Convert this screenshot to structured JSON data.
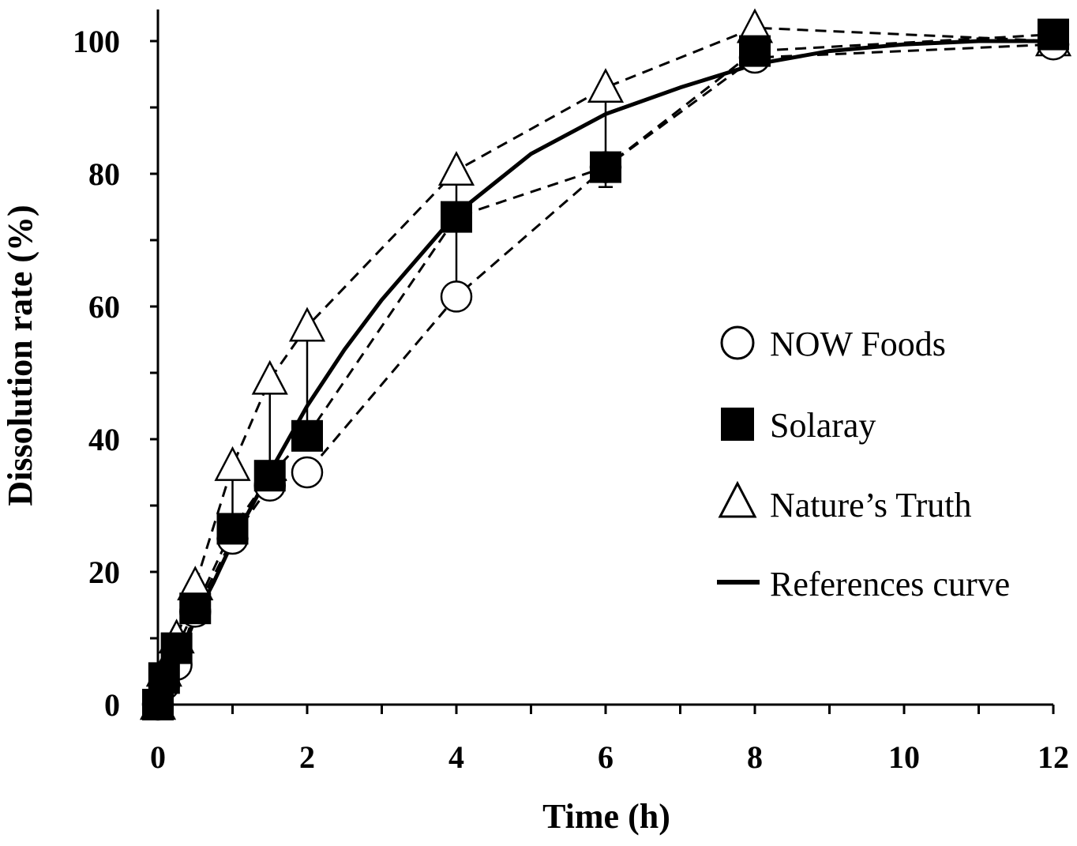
{
  "chart_data": {
    "type": "scatter",
    "title": "",
    "xlabel": "Time (h)",
    "ylabel": "Dissolution rate (%)",
    "xlim": [
      0,
      12
    ],
    "ylim": [
      0,
      100
    ],
    "x_ticks": [
      0,
      2,
      4,
      6,
      8,
      10,
      12
    ],
    "y_ticks": [
      0,
      20,
      40,
      60,
      80,
      100
    ],
    "grid": false,
    "legend_position": "right",
    "x": [
      0,
      0.083,
      0.25,
      0.5,
      1,
      1.5,
      2,
      4,
      6,
      8,
      12
    ],
    "series": [
      {
        "name": "NOW Foods",
        "marker": "open-circle",
        "line": "dashed",
        "values": [
          0,
          3,
          6,
          14,
          25,
          33,
          35,
          61.5,
          81,
          97.5,
          99.5
        ],
        "error": [
          0,
          0,
          0,
          0,
          0,
          0,
          0,
          0,
          0,
          0,
          0
        ]
      },
      {
        "name": "Solaray",
        "marker": "filled-square",
        "line": "dashed",
        "values": [
          0,
          4,
          8.5,
          14.5,
          26.5,
          34.5,
          40.5,
          73.5,
          81,
          98.5,
          101
        ],
        "error": [
          0,
          0,
          0,
          0,
          0,
          2.5,
          0,
          0,
          3,
          0,
          0
        ]
      },
      {
        "name": "Nature’s Truth",
        "marker": "open-triangle",
        "line": "dashed",
        "values": [
          0,
          5,
          10,
          18,
          36,
          49,
          57,
          80.5,
          93,
          102,
          100
        ],
        "error": [
          0,
          0,
          0,
          0,
          0,
          0,
          0,
          0,
          0,
          0,
          0
        ]
      }
    ],
    "reference_curve": {
      "name": "References curve",
      "line": "solid",
      "x": [
        0,
        0.25,
        0.5,
        0.75,
        1,
        1.5,
        2,
        2.5,
        3,
        4,
        5,
        6,
        7,
        8,
        9,
        10,
        11,
        12
      ],
      "values": [
        0,
        6,
        13,
        18.5,
        24.5,
        35,
        45,
        53.5,
        61,
        74,
        83,
        89,
        93,
        96.5,
        98.5,
        99.5,
        100,
        100
      ]
    },
    "error_bars_between": [
      {
        "x": 1,
        "from": 26.5,
        "to": 36
      },
      {
        "x": 1.5,
        "from": 34.5,
        "to": 49
      },
      {
        "x": 2,
        "from": 40.5,
        "to": 57
      },
      {
        "x": 4,
        "from": 61.5,
        "to": 80.5
      },
      {
        "x": 6,
        "from": 81,
        "to": 93
      }
    ],
    "colors": {
      "ink": "#000000",
      "background": "#ffffff"
    }
  }
}
